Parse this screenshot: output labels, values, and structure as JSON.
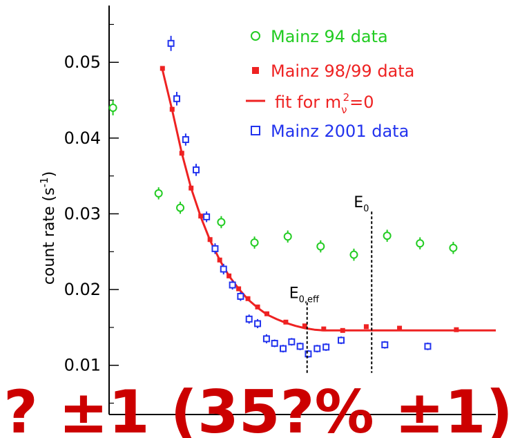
{
  "chart_data": {
    "type": "scatter",
    "title": "",
    "ylabel_main": "count rate",
    "ylabel_unit_open": "(s",
    "ylabel_unit_sup": "-1",
    "ylabel_unit_close": ")",
    "xlabel": "",
    "ylim": [
      0.0035,
      0.0575
    ],
    "x_domain": [
      0,
      100
    ],
    "grid": false,
    "legend_position": "top-right",
    "yticks": [
      {
        "value": 0.01,
        "label": "0.01"
      },
      {
        "value": 0.02,
        "label": "0.02"
      },
      {
        "value": 0.03,
        "label": "0.03"
      },
      {
        "value": 0.04,
        "label": "0.04"
      },
      {
        "value": 0.05,
        "label": "0.05"
      }
    ],
    "series": [
      {
        "name": "Mainz 94 data",
        "color": "#22cc22",
        "marker": "open-circle",
        "points": [
          {
            "x": 1.0,
            "y": 0.044,
            "err": 0.001
          },
          {
            "x": 12.8,
            "y": 0.0327,
            "err": 0.0008
          },
          {
            "x": 18.4,
            "y": 0.0308,
            "err": 0.0008
          },
          {
            "x": 29.0,
            "y": 0.0289,
            "err": 0.0008
          },
          {
            "x": 37.6,
            "y": 0.0262,
            "err": 0.0008
          },
          {
            "x": 46.2,
            "y": 0.027,
            "err": 0.0008
          },
          {
            "x": 54.7,
            "y": 0.0257,
            "err": 0.0008
          },
          {
            "x": 63.3,
            "y": 0.0246,
            "err": 0.0008
          },
          {
            "x": 71.9,
            "y": 0.0271,
            "err": 0.0008
          },
          {
            "x": 80.4,
            "y": 0.0261,
            "err": 0.0008
          },
          {
            "x": 89.0,
            "y": 0.0255,
            "err": 0.0008
          }
        ]
      },
      {
        "name": "Mainz 98/99 data",
        "color": "#ee2222",
        "marker": "filled-square",
        "points": [
          {
            "x": 13.8,
            "y": 0.0492
          },
          {
            "x": 16.3,
            "y": 0.0438
          },
          {
            "x": 18.8,
            "y": 0.038
          },
          {
            "x": 21.2,
            "y": 0.0334
          },
          {
            "x": 23.7,
            "y": 0.0297
          },
          {
            "x": 26.1,
            "y": 0.0266
          },
          {
            "x": 28.6,
            "y": 0.0239
          },
          {
            "x": 31.0,
            "y": 0.0218
          },
          {
            "x": 33.5,
            "y": 0.0201
          },
          {
            "x": 35.9,
            "y": 0.0188
          },
          {
            "x": 38.4,
            "y": 0.0177
          },
          {
            "x": 40.8,
            "y": 0.0168
          },
          {
            "x": 45.7,
            "y": 0.0157
          },
          {
            "x": 50.6,
            "y": 0.0152
          },
          {
            "x": 55.5,
            "y": 0.0148
          },
          {
            "x": 60.4,
            "y": 0.0146
          },
          {
            "x": 66.5,
            "y": 0.0151
          },
          {
            "x": 75.1,
            "y": 0.0149
          },
          {
            "x": 89.8,
            "y": 0.0147
          }
        ]
      },
      {
        "name": "Mainz 2001 data",
        "color": "#2233ee",
        "marker": "open-square",
        "points": [
          {
            "x": 16.0,
            "y": 0.0525,
            "err": 0.001
          },
          {
            "x": 17.5,
            "y": 0.0452,
            "err": 0.0009
          },
          {
            "x": 19.8,
            "y": 0.0398,
            "err": 0.0008
          },
          {
            "x": 22.5,
            "y": 0.0358,
            "err": 0.0008
          },
          {
            "x": 25.2,
            "y": 0.0296,
            "err": 0.0007
          },
          {
            "x": 27.4,
            "y": 0.0254,
            "err": 0.0007
          },
          {
            "x": 29.6,
            "y": 0.0227,
            "err": 0.0007
          },
          {
            "x": 31.9,
            "y": 0.0206,
            "err": 0.0006
          },
          {
            "x": 34.0,
            "y": 0.0191,
            "err": 0.0006
          },
          {
            "x": 36.2,
            "y": 0.0161,
            "err": 0.0006
          },
          {
            "x": 38.4,
            "y": 0.0155,
            "err": 0.0006
          },
          {
            "x": 40.7,
            "y": 0.0135,
            "err": 0.0006
          },
          {
            "x": 42.8,
            "y": 0.0129,
            "err": 0.0005
          },
          {
            "x": 45.0,
            "y": 0.0122,
            "err": 0.0005
          },
          {
            "x": 47.2,
            "y": 0.0131,
            "err": 0.0005
          },
          {
            "x": 49.4,
            "y": 0.0125,
            "err": 0.0005
          },
          {
            "x": 51.5,
            "y": 0.0115,
            "err": 0.0005
          },
          {
            "x": 53.8,
            "y": 0.0122,
            "err": 0.0005
          },
          {
            "x": 56.1,
            "y": 0.0124,
            "err": 0.0005
          },
          {
            "x": 60.0,
            "y": 0.0133,
            "err": 0.0005
          },
          {
            "x": 71.3,
            "y": 0.0127,
            "err": 0.0005
          },
          {
            "x": 82.4,
            "y": 0.0125,
            "err": 0.0005
          }
        ]
      }
    ],
    "fit": {
      "name": "fit for m",
      "name_sub": "ν",
      "name_sup": "2",
      "name_end": "=0",
      "color": "#ee2222",
      "points": [
        {
          "x": 13.8,
          "y": 0.049
        },
        {
          "x": 16.3,
          "y": 0.0437
        },
        {
          "x": 18.8,
          "y": 0.038
        },
        {
          "x": 21.2,
          "y": 0.0334
        },
        {
          "x": 23.7,
          "y": 0.0296
        },
        {
          "x": 26.1,
          "y": 0.0265
        },
        {
          "x": 28.6,
          "y": 0.0239
        },
        {
          "x": 31.0,
          "y": 0.0218
        },
        {
          "x": 33.5,
          "y": 0.0201
        },
        {
          "x": 35.9,
          "y": 0.0187
        },
        {
          "x": 38.4,
          "y": 0.0176
        },
        {
          "x": 40.8,
          "y": 0.0167
        },
        {
          "x": 43.3,
          "y": 0.0161
        },
        {
          "x": 45.7,
          "y": 0.0156
        },
        {
          "x": 48.2,
          "y": 0.0152
        },
        {
          "x": 50.6,
          "y": 0.0149
        },
        {
          "x": 53.1,
          "y": 0.0147
        },
        {
          "x": 55.5,
          "y": 0.0146
        },
        {
          "x": 60.0,
          "y": 0.0146
        },
        {
          "x": 100.0,
          "y": 0.0146
        }
      ]
    },
    "annotations": [
      {
        "main": "E",
        "sub": "0,eff",
        "x": 51.2,
        "y_top": 0.0183,
        "y_bottom": 0.009
      },
      {
        "main": "E",
        "sub": "0",
        "x": 67.9,
        "y_top": 0.0303,
        "y_bottom": 0.009
      }
    ]
  },
  "bottom_text": "?  ±1 (35?% ±1)"
}
